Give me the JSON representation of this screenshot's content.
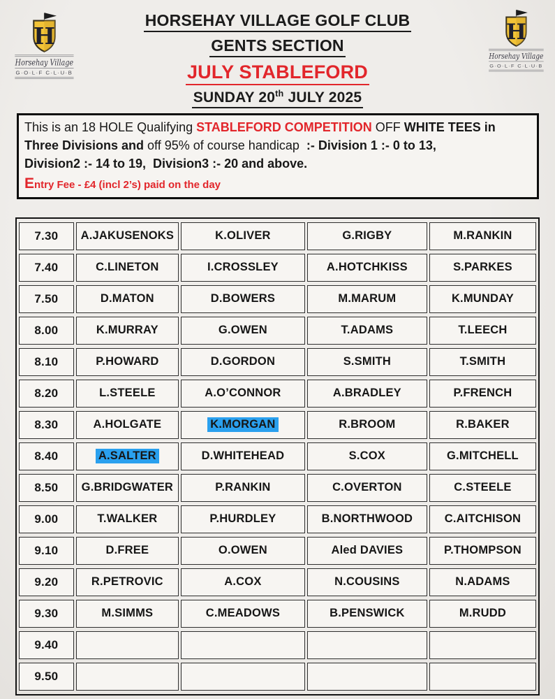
{
  "colors": {
    "paper": "#efedea",
    "paper_edge": "#e2dfdb",
    "cell": "#f7f5f2",
    "ink": "#1b1b1b",
    "red": "#e2262b",
    "highlight": "#2aa0ee",
    "gold": "#f2c337"
  },
  "logo": {
    "monogram": "H",
    "script_name": "Horsehay Village",
    "letters": "G·O·L·F  C·L·U·B"
  },
  "header": {
    "title": "HORSEHAY VILLAGE GOLF CLUB",
    "section": "GENTS SECTION",
    "event": "JULY STABLEFORD",
    "date_prefix": "SUNDAY 20",
    "date_super": "th",
    "date_suffix": " JULY 2025"
  },
  "notice": {
    "segments": [
      {
        "text": "This is an 18 HOLE Qualifying ",
        "bold": false,
        "red": false
      },
      {
        "text": "STABLEFORD COMPETITION",
        "bold": true,
        "red": true
      },
      {
        "text": " OFF ",
        "bold": false,
        "red": false
      },
      {
        "text": "WHITE TEES in\nThree Divisions and",
        "bold": true,
        "red": false
      },
      {
        "text": " off 95% of course handicap  ",
        "bold": false,
        "red": false
      },
      {
        "text": ":- Division 1 :- 0 to 13,\nDivision2 :- 14 to 19,  Division3 :- 20 and above.",
        "bold": true,
        "red": false
      }
    ],
    "entry_fee": "Entry Fee - £4 (incl 2’s) paid on the day"
  },
  "tee_sheet": {
    "rows": [
      {
        "time": "7.30",
        "players": [
          "A.JAKUSENOKS",
          "K.OLIVER",
          "G.RIGBY",
          "M.RANKIN"
        ]
      },
      {
        "time": "7.40",
        "players": [
          "C.LINETON",
          "I.CROSSLEY",
          "A.HOTCHKISS",
          "S.PARKES"
        ]
      },
      {
        "time": "7.50",
        "players": [
          "D.MATON",
          "D.BOWERS",
          "M.MARUM",
          "K.MUNDAY"
        ]
      },
      {
        "time": "8.00",
        "players": [
          "K.MURRAY",
          "G.OWEN",
          "T.ADAMS",
          "T.LEECH"
        ]
      },
      {
        "time": "8.10",
        "players": [
          "P.HOWARD",
          "D.GORDON",
          "S.SMITH",
          "T.SMITH"
        ]
      },
      {
        "time": "8.20",
        "players": [
          "L.STEELE",
          "A.O’CONNOR",
          "A.BRADLEY",
          "P.FRENCH"
        ]
      },
      {
        "time": "8.30",
        "players": [
          "A.HOLGATE",
          "K.MORGAN",
          "R.BROOM",
          "R.BAKER"
        ],
        "highlight": [
          1
        ]
      },
      {
        "time": "8.40",
        "players": [
          "A.SALTER",
          "D.WHITEHEAD",
          "S.COX",
          "G.MITCHELL"
        ],
        "highlight": [
          0
        ]
      },
      {
        "time": "8.50",
        "players": [
          "G.BRIDGWATER",
          "P.RANKIN",
          "C.OVERTON",
          "C.STEELE"
        ]
      },
      {
        "time": "9.00",
        "players": [
          "T.WALKER",
          "P.HURDLEY",
          "B.NORTHWOOD",
          "C.AITCHISON"
        ]
      },
      {
        "time": "9.10",
        "players": [
          "D.FREE",
          "O.OWEN",
          "Aled DAVIES",
          "P.THOMPSON"
        ]
      },
      {
        "time": "9.20",
        "players": [
          "R.PETROVIC",
          "A.COX",
          "N.COUSINS",
          "N.ADAMS"
        ]
      },
      {
        "time": "9.30",
        "players": [
          "M.SIMMS",
          "C.MEADOWS",
          "B.PENSWICK",
          "M.RUDD"
        ]
      },
      {
        "time": "9.40",
        "players": [
          "",
          "",
          "",
          ""
        ]
      },
      {
        "time": "9.50",
        "players": [
          "",
          "",
          "",
          ""
        ]
      }
    ]
  }
}
